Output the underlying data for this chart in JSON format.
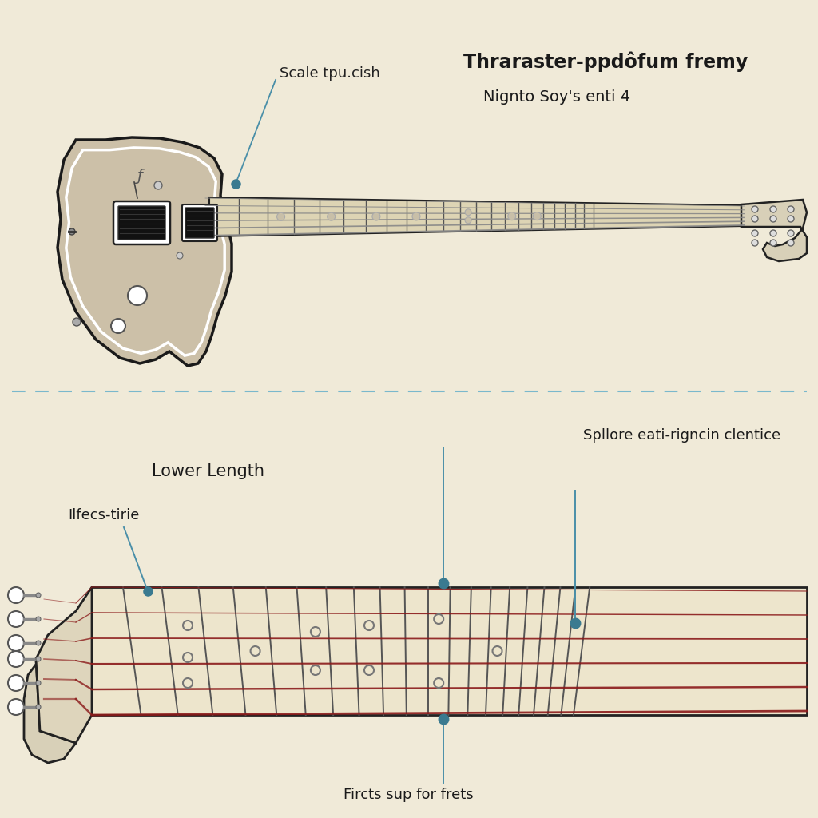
{
  "background_color": "#f0ead8",
  "title_text": "Thraraster-ppdôfum fremy",
  "subtitle_text": "Nignto Soy's enti 4",
  "annotation_color": "#4a8fa8",
  "annotation_dot_color": "#3a7a90",
  "divider_color": "#7ab8cc",
  "string_color": "#8b1a1a",
  "neck_fill": "#e8dfc8",
  "neck_border": "#222222",
  "body_fill": "#ccc0a8",
  "body_border": "#1a1a1a",
  "headstock_fill": "#d8d0b8",
  "label_scale": "Scale tpu.cish",
  "label_lower_length": "Lower Length",
  "label_ilfecs": "Ilfecs-tirie",
  "label_spllore": "Spllore eati-rigncin clentice",
  "label_fircts": "Fircts sup for frets",
  "fret_marker_color": "#cccccc",
  "fret_line_color": "#555555",
  "pickup_fill": "white",
  "pickup_border": "#222222"
}
